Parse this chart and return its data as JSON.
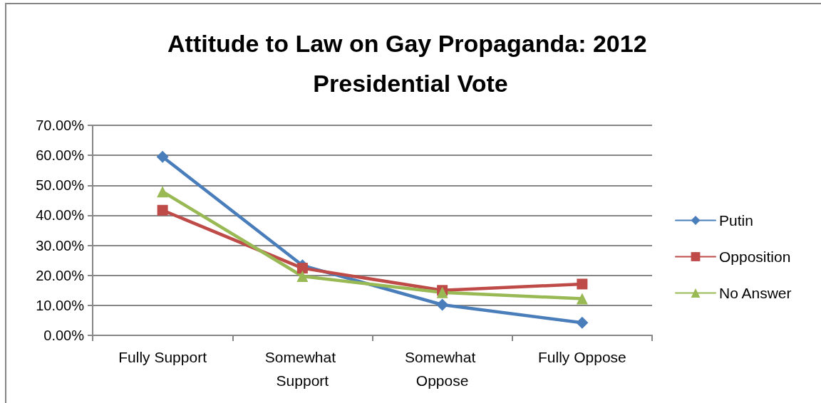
{
  "chart_data": {
    "type": "line",
    "title": "Attitude to Law on Gay Propaganda: 2012 Presidential Vote",
    "categories": [
      "Fully Support",
      "Somewhat Support",
      "Somewhat Oppose",
      "Fully Oppose"
    ],
    "series": [
      {
        "name": "Putin",
        "color": "#4a7ebb",
        "marker": "diamond",
        "values": [
          59.5,
          23.3,
          10.2,
          4.2
        ]
      },
      {
        "name": "Opposition",
        "color": "#be4b48",
        "marker": "square",
        "values": [
          41.7,
          22.4,
          15.0,
          17.1
        ]
      },
      {
        "name": "No Answer",
        "color": "#98b954",
        "marker": "triangle",
        "values": [
          47.9,
          19.7,
          14.3,
          12.2
        ]
      }
    ],
    "ylim": [
      0,
      70
    ],
    "yticks": [
      {
        "value": 0,
        "label": "0.00%"
      },
      {
        "value": 10,
        "label": "10.00%"
      },
      {
        "value": 20,
        "label": "20.00%"
      },
      {
        "value": 30,
        "label": "30.00%"
      },
      {
        "value": 40,
        "label": "40.00%"
      },
      {
        "value": 50,
        "label": "50.00%"
      },
      {
        "value": 60,
        "label": "60.00%"
      },
      {
        "value": 70,
        "label": "70.00%"
      }
    ],
    "grid": "y",
    "legend": "right",
    "line_style": "solid"
  }
}
